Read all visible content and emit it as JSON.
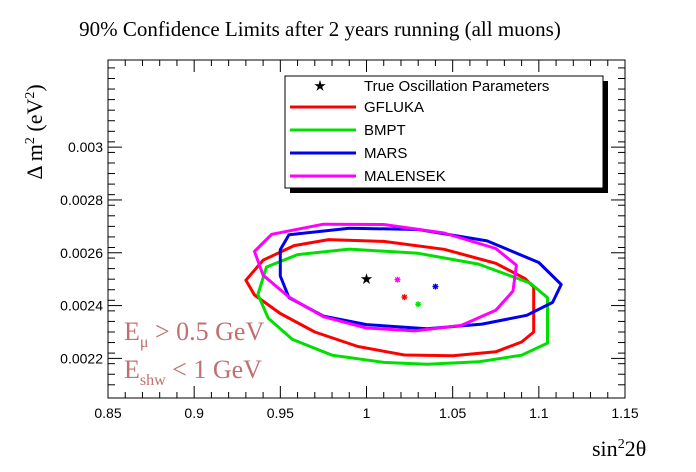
{
  "chart_data": {
    "type": "line",
    "title": "90% Confidence Limits after 2 years running (all muons)",
    "xlabel": {
      "base": "sin",
      "sup": "2",
      "tail": "2θ"
    },
    "ylabel": {
      "pre": "Δ m",
      "sup1": "2",
      "mid": " (eV",
      "sup2": "2",
      "post": ")"
    },
    "xlim": [
      0.85,
      1.15
    ],
    "ylim": [
      0.00205,
      0.00333
    ],
    "xticks": [
      {
        "value": 0.85,
        "label": "0.85"
      },
      {
        "value": 0.9,
        "label": "0.9"
      },
      {
        "value": 0.95,
        "label": "0.95"
      },
      {
        "value": 1.0,
        "label": "1"
      },
      {
        "value": 1.05,
        "label": "1.05"
      },
      {
        "value": 1.1,
        "label": "1.1"
      },
      {
        "value": 1.15,
        "label": "1.15"
      }
    ],
    "yticks": [
      {
        "value": 0.0022,
        "label": "0.0022"
      },
      {
        "value": 0.0024,
        "label": "0.0024"
      },
      {
        "value": 0.0026,
        "label": "0.0026"
      },
      {
        "value": 0.0028,
        "label": "0.0028"
      },
      {
        "value": 0.003,
        "label": "0.003"
      }
    ],
    "grid": false,
    "legend_position": "top-right",
    "legend": [
      {
        "label": "True Oscillation Parameters",
        "kind": "marker",
        "color": "#000000"
      },
      {
        "label": "GFLUKA",
        "kind": "line",
        "color": "#ff0000"
      },
      {
        "label": "BMPT",
        "kind": "line",
        "color": "#00e000"
      },
      {
        "label": "MARS",
        "kind": "line",
        "color": "#0000ee"
      },
      {
        "label": "MALENSEK",
        "kind": "line",
        "color": "#ff00ff"
      }
    ],
    "true_point": {
      "x": 1.0,
      "y": 0.0025,
      "color": "#000000"
    },
    "series": [
      {
        "name": "GFLUKA",
        "color": "#ff0000",
        "best_fit": {
          "x": 1.022,
          "y": 0.002432
        },
        "contour": [
          [
            0.978,
            0.00265
          ],
          [
            1.01,
            0.002643
          ],
          [
            1.045,
            0.002613
          ],
          [
            1.075,
            0.00256
          ],
          [
            1.092,
            0.002502
          ],
          [
            1.097,
            0.00247
          ],
          [
            1.097,
            0.0023
          ],
          [
            1.09,
            0.002262
          ],
          [
            1.075,
            0.002225
          ],
          [
            1.05,
            0.00221
          ],
          [
            1.022,
            0.002213
          ],
          [
            0.995,
            0.002245
          ],
          [
            0.97,
            0.0023
          ],
          [
            0.95,
            0.00237
          ],
          [
            0.935,
            0.00244
          ],
          [
            0.93,
            0.002496
          ],
          [
            0.94,
            0.002572
          ],
          [
            0.958,
            0.002627
          ]
        ]
      },
      {
        "name": "BMPT",
        "color": "#00e000",
        "best_fit": {
          "x": 1.03,
          "y": 0.002405
        },
        "contour": [
          [
            0.96,
            0.002593
          ],
          [
            0.99,
            0.002614
          ],
          [
            1.03,
            0.002598
          ],
          [
            1.065,
            0.002557
          ],
          [
            1.095,
            0.002485
          ],
          [
            1.105,
            0.00243
          ],
          [
            1.105,
            0.002258
          ],
          [
            1.09,
            0.002212
          ],
          [
            1.065,
            0.002187
          ],
          [
            1.035,
            0.002178
          ],
          [
            1.01,
            0.002185
          ],
          [
            0.98,
            0.002212
          ],
          [
            0.957,
            0.002272
          ],
          [
            0.943,
            0.002352
          ],
          [
            0.937,
            0.002442
          ],
          [
            0.942,
            0.002546
          ]
        ]
      },
      {
        "name": "MARS",
        "color": "#0000ee",
        "best_fit": {
          "x": 1.04,
          "y": 0.002472
        },
        "contour": [
          [
            0.955,
            0.002668
          ],
          [
            0.99,
            0.002693
          ],
          [
            1.03,
            0.002688
          ],
          [
            1.07,
            0.002645
          ],
          [
            1.1,
            0.002563
          ],
          [
            1.113,
            0.00248
          ],
          [
            1.108,
            0.002412
          ],
          [
            1.093,
            0.002363
          ],
          [
            1.067,
            0.00233
          ],
          [
            1.035,
            0.002312
          ],
          [
            1.0,
            0.002328
          ],
          [
            0.975,
            0.00236
          ],
          [
            0.955,
            0.00243
          ],
          [
            0.95,
            0.002512
          ],
          [
            0.95,
            0.002612
          ]
        ]
      },
      {
        "name": "MALENSEK",
        "color": "#ff00ff",
        "best_fit": {
          "x": 1.018,
          "y": 0.002498
        },
        "contour": [
          [
            0.945,
            0.00267
          ],
          [
            0.975,
            0.002708
          ],
          [
            1.01,
            0.002707
          ],
          [
            1.045,
            0.002675
          ],
          [
            1.075,
            0.002616
          ],
          [
            1.087,
            0.002553
          ],
          [
            1.085,
            0.002455
          ],
          [
            1.075,
            0.002382
          ],
          [
            1.055,
            0.002325
          ],
          [
            1.028,
            0.002304
          ],
          [
            1.0,
            0.002315
          ],
          [
            0.975,
            0.002358
          ],
          [
            0.955,
            0.002432
          ],
          [
            0.94,
            0.002515
          ],
          [
            0.935,
            0.002605
          ]
        ]
      }
    ],
    "annotations": [
      {
        "main": "E",
        "sub": "μ",
        "rest": " > 0.5 GeV",
        "color": "#c07070"
      },
      {
        "main": "E",
        "sub": "shw",
        "rest": " < 1 GeV",
        "color": "#c07070"
      }
    ]
  }
}
